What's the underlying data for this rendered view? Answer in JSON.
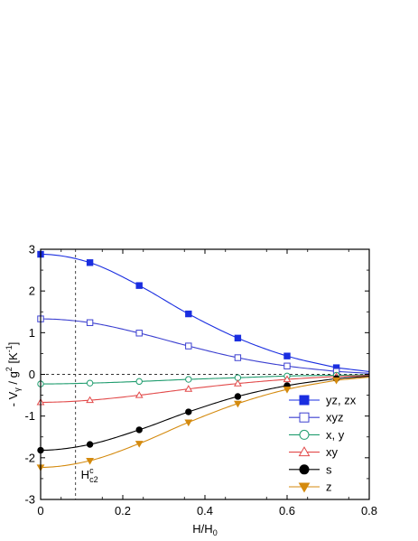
{
  "chart_data": {
    "type": "line",
    "title": "",
    "xlabel": {
      "base": "H/H",
      "sub": "0"
    },
    "ylabel": {
      "prefix": "- V",
      "sub": "γ",
      "mid": " / g",
      "sup": "2",
      "unit_open": " [K",
      "unit_sup": "-1",
      "unit_close": "]"
    },
    "xlim": [
      0,
      0.8
    ],
    "ylim": [
      -3,
      3
    ],
    "xticks": [
      0,
      0.2,
      0.4,
      0.6,
      0.8
    ],
    "xtick_labels": [
      "0",
      "0.2",
      "0.4",
      "0.6",
      "0.8"
    ],
    "yticks": [
      -3,
      -2,
      -1,
      0,
      1,
      2,
      3
    ],
    "ytick_labels": [
      "-3",
      "-2",
      "-1",
      "0",
      "1",
      "2",
      "3"
    ],
    "reference_lines": {
      "horizontal_dashed_y": 0,
      "vertical_dashed_x": 0.085
    },
    "annotation": {
      "base": "H",
      "sup": "c",
      "sub": "c2"
    },
    "legend_position": "lower-right",
    "series": [
      {
        "name": "yz, zx",
        "color": "#1a2ee0",
        "marker": "square-filled",
        "x": [
          0,
          0.12,
          0.24,
          0.36,
          0.48,
          0.6,
          0.72
        ],
        "y": [
          2.88,
          2.68,
          2.13,
          1.45,
          0.87,
          0.44,
          0.16
        ]
      },
      {
        "name": "xyz",
        "color": "#3b3fd0",
        "marker": "square-open",
        "x": [
          0,
          0.12,
          0.24,
          0.36,
          0.48,
          0.6,
          0.72
        ],
        "y": [
          1.33,
          1.24,
          0.99,
          0.68,
          0.4,
          0.2,
          0.07
        ]
      },
      {
        "name": "x, y",
        "color": "#1f9c6e",
        "marker": "circle-open",
        "x": [
          0,
          0.12,
          0.24,
          0.36,
          0.48,
          0.6,
          0.72
        ],
        "y": [
          -0.23,
          -0.21,
          -0.17,
          -0.12,
          -0.08,
          -0.04,
          -0.02
        ]
      },
      {
        "name": "xy",
        "color": "#e24a4a",
        "marker": "triangle-up-open",
        "x": [
          0,
          0.12,
          0.24,
          0.36,
          0.48,
          0.6,
          0.72
        ],
        "y": [
          -0.67,
          -0.62,
          -0.5,
          -0.35,
          -0.22,
          -0.12,
          -0.05
        ]
      },
      {
        "name": "s",
        "color": "#000000",
        "marker": "circle-filled",
        "x": [
          0,
          0.12,
          0.24,
          0.36,
          0.48,
          0.6,
          0.72
        ],
        "y": [
          -1.82,
          -1.68,
          -1.33,
          -0.9,
          -0.53,
          -0.27,
          -0.1
        ]
      },
      {
        "name": "z",
        "color": "#d48a0e",
        "marker": "triangle-down-filled",
        "x": [
          0,
          0.12,
          0.24,
          0.36,
          0.48,
          0.6,
          0.72
        ],
        "y": [
          -2.23,
          -2.07,
          -1.66,
          -1.15,
          -0.7,
          -0.36,
          -0.14
        ]
      }
    ]
  }
}
